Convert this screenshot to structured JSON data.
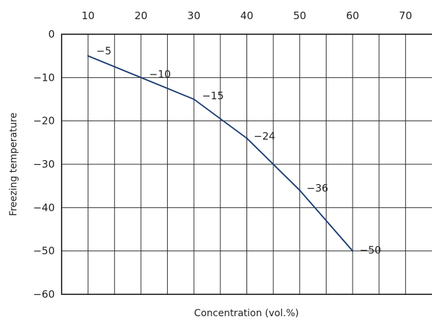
{
  "chart_data": {
    "type": "line",
    "title": "",
    "xlabel": "Concentration (vol.%)",
    "ylabel": "Freezing temperature",
    "xlim": [
      5,
      75
    ],
    "ylim": [
      -60,
      0
    ],
    "x_ticks": [
      10,
      20,
      30,
      40,
      50,
      60,
      70
    ],
    "x_tick_labels": [
      "10",
      "20",
      "30",
      "40",
      "50",
      "60",
      "70"
    ],
    "y_ticks": [
      0,
      -10,
      -20,
      -30,
      -40,
      -50,
      -60
    ],
    "y_tick_labels": [
      "0",
      "−10",
      "−20",
      "−30",
      "−40",
      "−50",
      "−60"
    ],
    "x_axis_position": "top",
    "grid": true,
    "series": [
      {
        "color": "#1f3f73",
        "x": [
          10,
          20,
          30,
          40,
          50,
          60
        ],
        "y": [
          -5,
          -10,
          -15,
          -24,
          -36,
          -50
        ],
        "point_labels": [
          "−5",
          "−10",
          "−15",
          "−24",
          "−36",
          "−50"
        ]
      }
    ]
  }
}
